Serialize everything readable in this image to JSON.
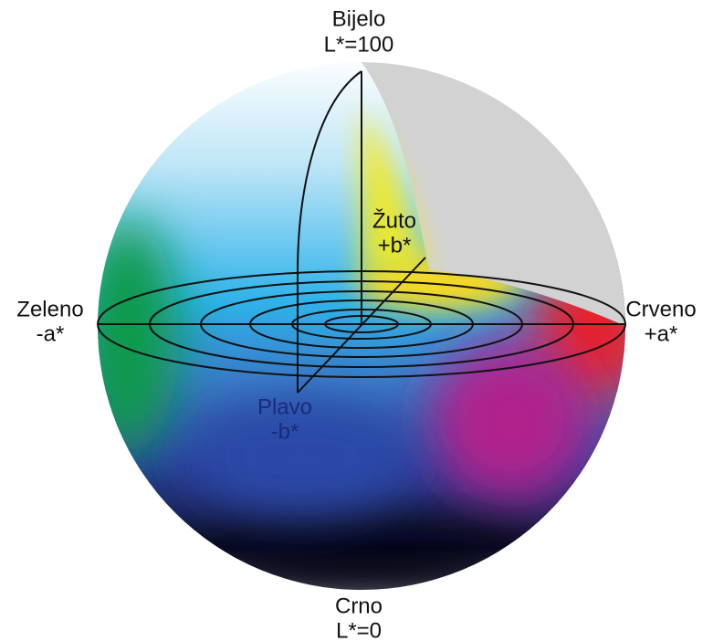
{
  "labels": {
    "top": {
      "name": "Bijelo",
      "value": "L*=100"
    },
    "yellow": {
      "name": "Žuto",
      "value": "+b*"
    },
    "left": {
      "name": "Zeleno",
      "value": "-a*"
    },
    "right": {
      "name": "Crveno",
      "value": "+a*"
    },
    "blue": {
      "name": "Plavo",
      "value": "-b*"
    },
    "bottom": {
      "name": "Crno",
      "value": "L*=0"
    }
  }
}
